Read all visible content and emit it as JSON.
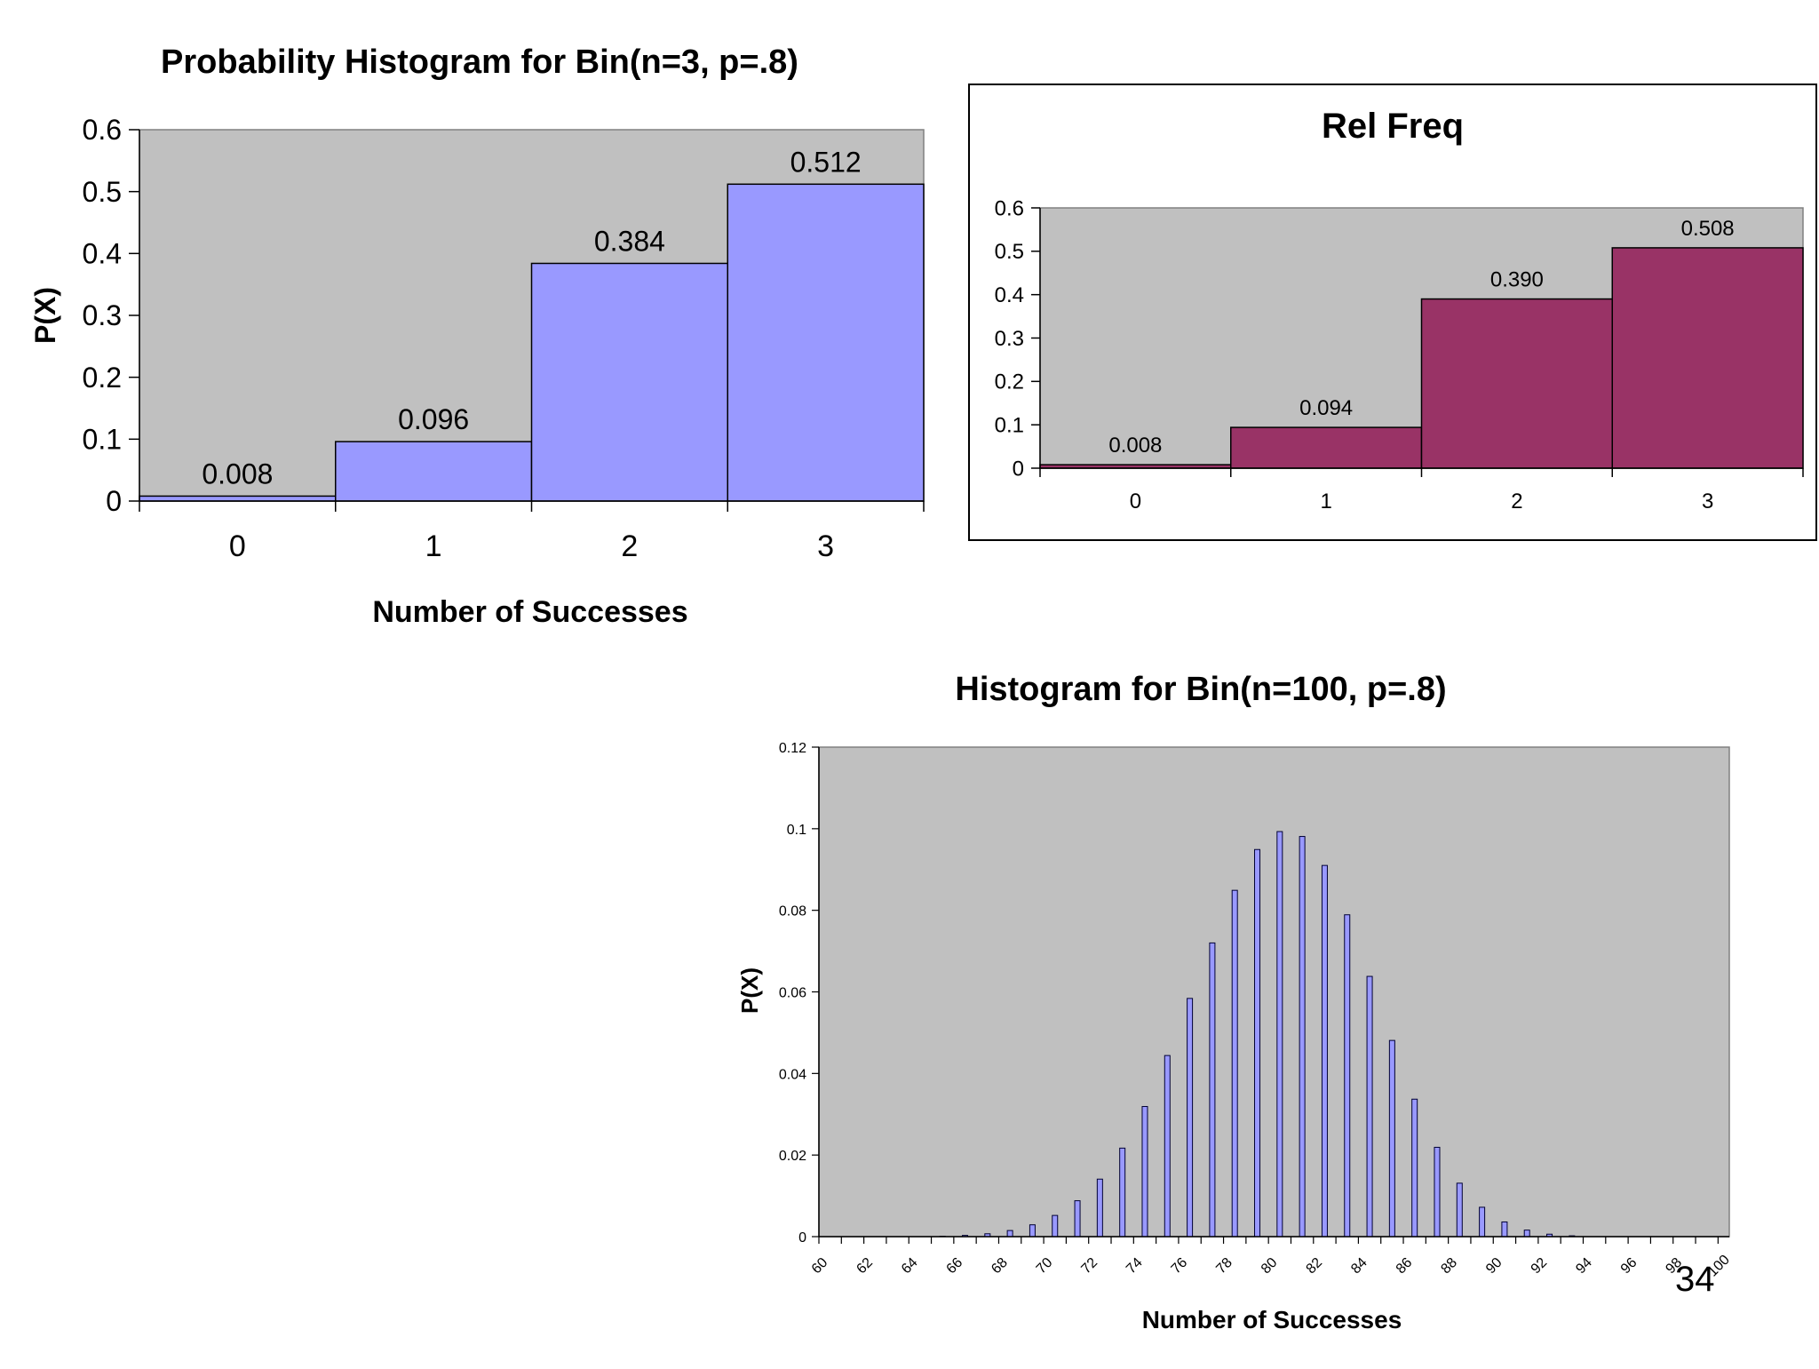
{
  "colors": {
    "plot_bg": "#c0c0c0",
    "bar1": "#9999ff",
    "bar2": "#993366",
    "bar3": "#9999ff"
  },
  "chart_data": [
    {
      "type": "bar",
      "title": "Probability Histogram for Bin(n=3, p=.8)",
      "xlabel": "Number of Successes",
      "ylabel": "P(X)",
      "categories": [
        "0",
        "1",
        "2",
        "3"
      ],
      "values": [
        0.008,
        0.096,
        0.384,
        0.512
      ],
      "data_labels": [
        "0.008",
        "0.096",
        "0.384",
        "0.512"
      ],
      "ylim": [
        0,
        0.6
      ],
      "yticks": [
        "0",
        "0.1",
        "0.2",
        "0.3",
        "0.4",
        "0.5",
        "0.6"
      ],
      "grid": false,
      "legend": "none"
    },
    {
      "type": "bar",
      "title": "Rel Freq",
      "xlabel": "",
      "ylabel": "",
      "categories": [
        "0",
        "1",
        "2",
        "3"
      ],
      "values": [
        0.008,
        0.094,
        0.39,
        0.508
      ],
      "data_labels": [
        "0.008",
        "0.094",
        "0.390",
        "0.508"
      ],
      "ylim": [
        0,
        0.6
      ],
      "yticks": [
        "0",
        "0.1",
        "0.2",
        "0.3",
        "0.4",
        "0.5",
        "0.6"
      ],
      "grid": false,
      "legend": "none"
    },
    {
      "type": "bar",
      "title": "Histogram for Bin(n=100, p=.8)",
      "xlabel": "Number of Successes",
      "ylabel": "P(X)",
      "x": [
        60,
        61,
        62,
        63,
        64,
        65,
        66,
        67,
        68,
        69,
        70,
        71,
        72,
        73,
        74,
        75,
        76,
        77,
        78,
        79,
        80,
        81,
        82,
        83,
        84,
        85,
        86,
        87,
        88,
        89,
        90,
        91,
        92,
        93,
        94,
        95,
        96,
        97,
        98,
        99,
        100
      ],
      "values": [
        0,
        0,
        0,
        0,
        0,
        0.0001,
        0.0003,
        0.0007,
        0.0015,
        0.0029,
        0.0052,
        0.0088,
        0.0141,
        0.0217,
        0.0319,
        0.0444,
        0.0584,
        0.072,
        0.0849,
        0.0949,
        0.0993,
        0.0981,
        0.091,
        0.0789,
        0.0638,
        0.0481,
        0.0337,
        0.0219,
        0.0131,
        0.0072,
        0.0036,
        0.0016,
        0.0006,
        0.0002,
        0,
        0,
        0,
        0,
        0,
        0,
        0
      ],
      "xticks": [
        "60",
        "62",
        "64",
        "66",
        "68",
        "70",
        "72",
        "74",
        "76",
        "78",
        "80",
        "82",
        "84",
        "86",
        "88",
        "90",
        "92",
        "94",
        "96",
        "98",
        "100"
      ],
      "ylim": [
        0,
        0.12
      ],
      "yticks": [
        "0",
        "0.02",
        "0.04",
        "0.06",
        "0.08",
        "0.1",
        "0.12"
      ],
      "grid": false,
      "legend": "none"
    }
  ],
  "page_number": "34"
}
